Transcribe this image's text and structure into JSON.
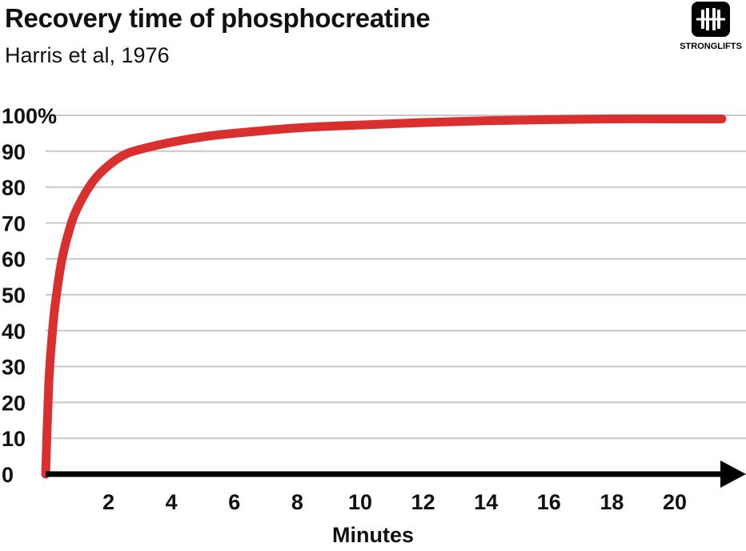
{
  "chart_data": {
    "type": "line",
    "title": "Recovery time of phosphocreatine",
    "subtitle": "Harris et al, 1976",
    "xlabel": "Minutes",
    "ylabel": "",
    "xlim": [
      0,
      21.5
    ],
    "ylim": [
      0,
      100
    ],
    "x_ticks": [
      2,
      4,
      6,
      8,
      10,
      12,
      14,
      16,
      18,
      20
    ],
    "x_tick_labels": [
      "2",
      "4",
      "6",
      "8",
      "10",
      "12",
      "14",
      "16",
      "18",
      "20"
    ],
    "y_ticks": [
      0,
      10,
      20,
      30,
      40,
      50,
      60,
      70,
      80,
      90,
      100
    ],
    "y_tick_labels": [
      "0",
      "10",
      "20",
      "30",
      "40",
      "50",
      "60",
      "70",
      "80",
      "90",
      "100%"
    ],
    "grid": "horizontal",
    "series": [
      {
        "color": "#d9302f",
        "x": [
          0,
          0.1,
          0.2,
          0.3,
          0.5,
          0.75,
          1,
          1.5,
          2,
          2.5,
          3,
          4,
          5,
          6,
          8,
          10,
          12,
          14,
          16,
          18,
          20,
          21.5
        ],
        "y": [
          0,
          25,
          38,
          47,
          59,
          68,
          74,
          81.5,
          86,
          89,
          90.5,
          92.5,
          94,
          95,
          96.5,
          97.3,
          98,
          98.5,
          98.8,
          99,
          99,
          99
        ]
      }
    ]
  },
  "logo": {
    "text": "STRONGLIFTS"
  },
  "colors": {
    "line": "#d9302f",
    "grid": "#c8c8c8",
    "axis": "#000000",
    "logo_bg": "#000000"
  }
}
